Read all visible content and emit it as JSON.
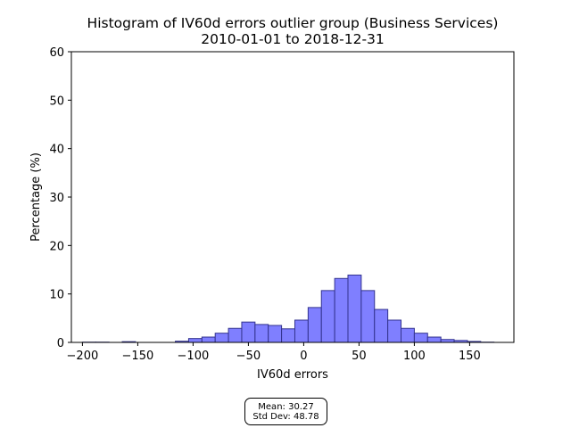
{
  "chart_data": {
    "type": "bar",
    "title": "Histogram of IV60d errors outlier group (Business Services)",
    "subtitle": "2010-01-01 to 2018-12-31",
    "xlabel": "IV60d errors",
    "ylabel": "Percentage (%)",
    "xlim": [
      -210,
      190
    ],
    "ylim": [
      0,
      60
    ],
    "xticks": [
      -200,
      -150,
      -100,
      -50,
      0,
      50,
      100,
      150
    ],
    "yticks": [
      0,
      10,
      20,
      30,
      40,
      50,
      60
    ],
    "grid": false,
    "bar_color": "#7f7fff",
    "edge_color": "#33338f",
    "bins": [
      {
        "x0": -200,
        "x1": -188,
        "value": 0.05
      },
      {
        "x0": -188,
        "x1": -176,
        "value": 0.05
      },
      {
        "x0": -164,
        "x1": -152,
        "value": 0.15
      },
      {
        "x0": -116,
        "x1": -104,
        "value": 0.25
      },
      {
        "x0": -104,
        "x1": -92,
        "value": 0.8
      },
      {
        "x0": -92,
        "x1": -80,
        "value": 1.1
      },
      {
        "x0": -80,
        "x1": -68,
        "value": 1.9
      },
      {
        "x0": -68,
        "x1": -56,
        "value": 2.9
      },
      {
        "x0": -56,
        "x1": -44,
        "value": 4.2
      },
      {
        "x0": -44,
        "x1": -32,
        "value": 3.7
      },
      {
        "x0": -32,
        "x1": -20,
        "value": 3.5
      },
      {
        "x0": -20,
        "x1": -8,
        "value": 2.8
      },
      {
        "x0": -8,
        "x1": 4,
        "value": 4.6
      },
      {
        "x0": 4,
        "x1": 16,
        "value": 7.2
      },
      {
        "x0": 16,
        "x1": 28,
        "value": 10.7
      },
      {
        "x0": 28,
        "x1": 40,
        "value": 13.2
      },
      {
        "x0": 40,
        "x1": 52,
        "value": 13.9
      },
      {
        "x0": 52,
        "x1": 64,
        "value": 10.7
      },
      {
        "x0": 64,
        "x1": 76,
        "value": 6.8
      },
      {
        "x0": 76,
        "x1": 88,
        "value": 4.6
      },
      {
        "x0": 88,
        "x1": 100,
        "value": 2.9
      },
      {
        "x0": 100,
        "x1": 112,
        "value": 1.9
      },
      {
        "x0": 112,
        "x1": 124,
        "value": 1.1
      },
      {
        "x0": 124,
        "x1": 136,
        "value": 0.6
      },
      {
        "x0": 136,
        "x1": 148,
        "value": 0.4
      },
      {
        "x0": 148,
        "x1": 160,
        "value": 0.2
      },
      {
        "x0": 160,
        "x1": 172,
        "value": 0.05
      }
    ],
    "annotation": {
      "mean_text": "Mean: 30.27",
      "std_text": "Std Dev: 48.78"
    }
  }
}
